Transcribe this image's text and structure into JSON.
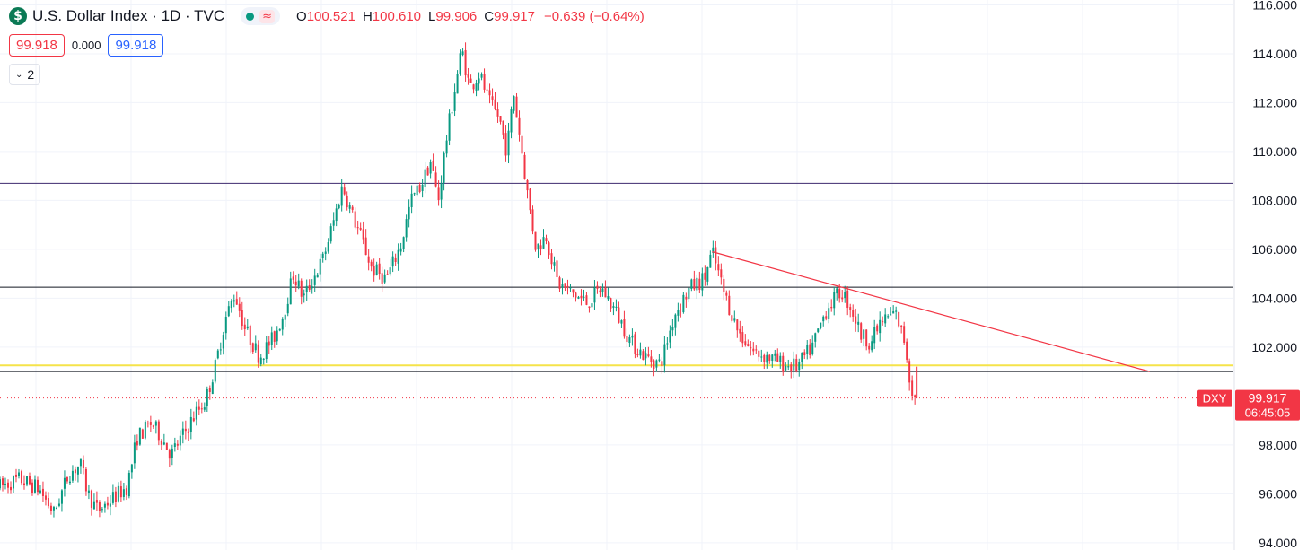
{
  "header": {
    "logo_glyph": "$",
    "title": "U.S. Dollar Index · 1D · TVC",
    "approx_glyph": "≈",
    "ohlc": {
      "o_label": "O",
      "o_value": "100.521",
      "h_label": "H",
      "h_value": "100.610",
      "l_label": "L",
      "l_value": "99.906",
      "c_label": "C",
      "c_value": "99.917",
      "change": "−0.639 (−0.64%)"
    }
  },
  "price_boxes": {
    "sell": "99.918",
    "spread": "0.000",
    "buy": "99.918"
  },
  "indicators_toggle": {
    "count": "2"
  },
  "colors": {
    "up": "#089981",
    "down": "#f23645",
    "grid": "#f0f3fa",
    "support": "#f5e34a",
    "trendline": "#f23645"
  },
  "chart_data": {
    "type": "candlestick",
    "symbol_label": "DXY",
    "last_price": "99.917",
    "countdown": "06:45:05",
    "y_range": [
      93.7,
      116.2
    ],
    "y_ticks": [
      "116.000",
      "114.000",
      "112.000",
      "110.000",
      "108.000",
      "106.000",
      "104.000",
      "102.000",
      "98.000",
      "96.000",
      "94.000"
    ],
    "y_tick_values": [
      116,
      114,
      112,
      110,
      108,
      106,
      104,
      102,
      98,
      96,
      94
    ],
    "last_value": 99.917,
    "horizontal_lines": [
      {
        "y": 108.7,
        "color": "#3d2a6e",
        "width": 1
      },
      {
        "y": 104.45,
        "color": "#131722",
        "width": 1
      },
      {
        "y": 101.25,
        "color": "#f5e34a",
        "width": 2
      },
      {
        "y": 101.0,
        "color": "#131722",
        "width": 1
      }
    ],
    "trendline": {
      "from_index": 0.728,
      "from_y": 105.9,
      "to_index": 1.175,
      "to_y": 101.0
    },
    "close_path": [
      [
        0,
        96.3
      ],
      [
        0.02,
        96.6
      ],
      [
        0.04,
        96.2
      ],
      [
        0.055,
        95.2
      ],
      [
        0.07,
        96.8
      ],
      [
        0.082,
        97.2
      ],
      [
        0.09,
        96.0
      ],
      [
        0.1,
        95.3
      ],
      [
        0.115,
        95.8
      ],
      [
        0.13,
        96.3
      ],
      [
        0.14,
        98.3
      ],
      [
        0.155,
        98.9
      ],
      [
        0.165,
        98.3
      ],
      [
        0.175,
        97.6
      ],
      [
        0.19,
        98.6
      ],
      [
        0.2,
        99.3
      ],
      [
        0.21,
        99.8
      ],
      [
        0.22,
        101.2
      ],
      [
        0.23,
        103.1
      ],
      [
        0.24,
        104.2
      ],
      [
        0.25,
        102.8
      ],
      [
        0.265,
        101.6
      ],
      [
        0.28,
        102.4
      ],
      [
        0.29,
        103.4
      ],
      [
        0.3,
        105.0
      ],
      [
        0.31,
        104.0
      ],
      [
        0.32,
        104.8
      ],
      [
        0.33,
        105.6
      ],
      [
        0.34,
        107.0
      ],
      [
        0.35,
        108.6
      ],
      [
        0.36,
        107.4
      ],
      [
        0.37,
        106.4
      ],
      [
        0.38,
        105.2
      ],
      [
        0.395,
        104.8
      ],
      [
        0.41,
        106.2
      ],
      [
        0.42,
        108.0
      ],
      [
        0.43,
        108.6
      ],
      [
        0.44,
        109.6
      ],
      [
        0.448,
        108.0
      ],
      [
        0.455,
        110.2
      ],
      [
        0.465,
        112.6
      ],
      [
        0.472,
        114.2
      ],
      [
        0.48,
        112.6
      ],
      [
        0.49,
        113.2
      ],
      [
        0.5,
        112.0
      ],
      [
        0.51,
        111.4
      ],
      [
        0.518,
        110.0
      ],
      [
        0.525,
        112.4
      ],
      [
        0.532,
        110.4
      ],
      [
        0.54,
        108.0
      ],
      [
        0.548,
        106.0
      ],
      [
        0.558,
        106.6
      ],
      [
        0.57,
        104.6
      ],
      [
        0.585,
        104.2
      ],
      [
        0.6,
        103.8
      ],
      [
        0.615,
        104.4
      ],
      [
        0.63,
        103.4
      ],
      [
        0.645,
        102.2
      ],
      [
        0.66,
        101.6
      ],
      [
        0.675,
        101.3
      ],
      [
        0.69,
        103.4
      ],
      [
        0.705,
        104.4
      ],
      [
        0.72,
        104.8
      ],
      [
        0.728,
        105.9
      ],
      [
        0.74,
        104.2
      ],
      [
        0.755,
        102.6
      ],
      [
        0.77,
        101.8
      ],
      [
        0.785,
        101.6
      ],
      [
        0.8,
        101.3
      ],
      [
        0.815,
        101.2
      ],
      [
        0.83,
        102.0
      ],
      [
        0.845,
        103.6
      ],
      [
        0.86,
        104.3
      ],
      [
        0.87,
        103.6
      ],
      [
        0.88,
        102.5
      ],
      [
        0.89,
        102.2
      ],
      [
        0.9,
        103.0
      ],
      [
        0.915,
        103.4
      ],
      [
        0.925,
        102.2
      ],
      [
        0.93,
        100.6
      ],
      [
        0.935,
        99.9
      ]
    ]
  }
}
